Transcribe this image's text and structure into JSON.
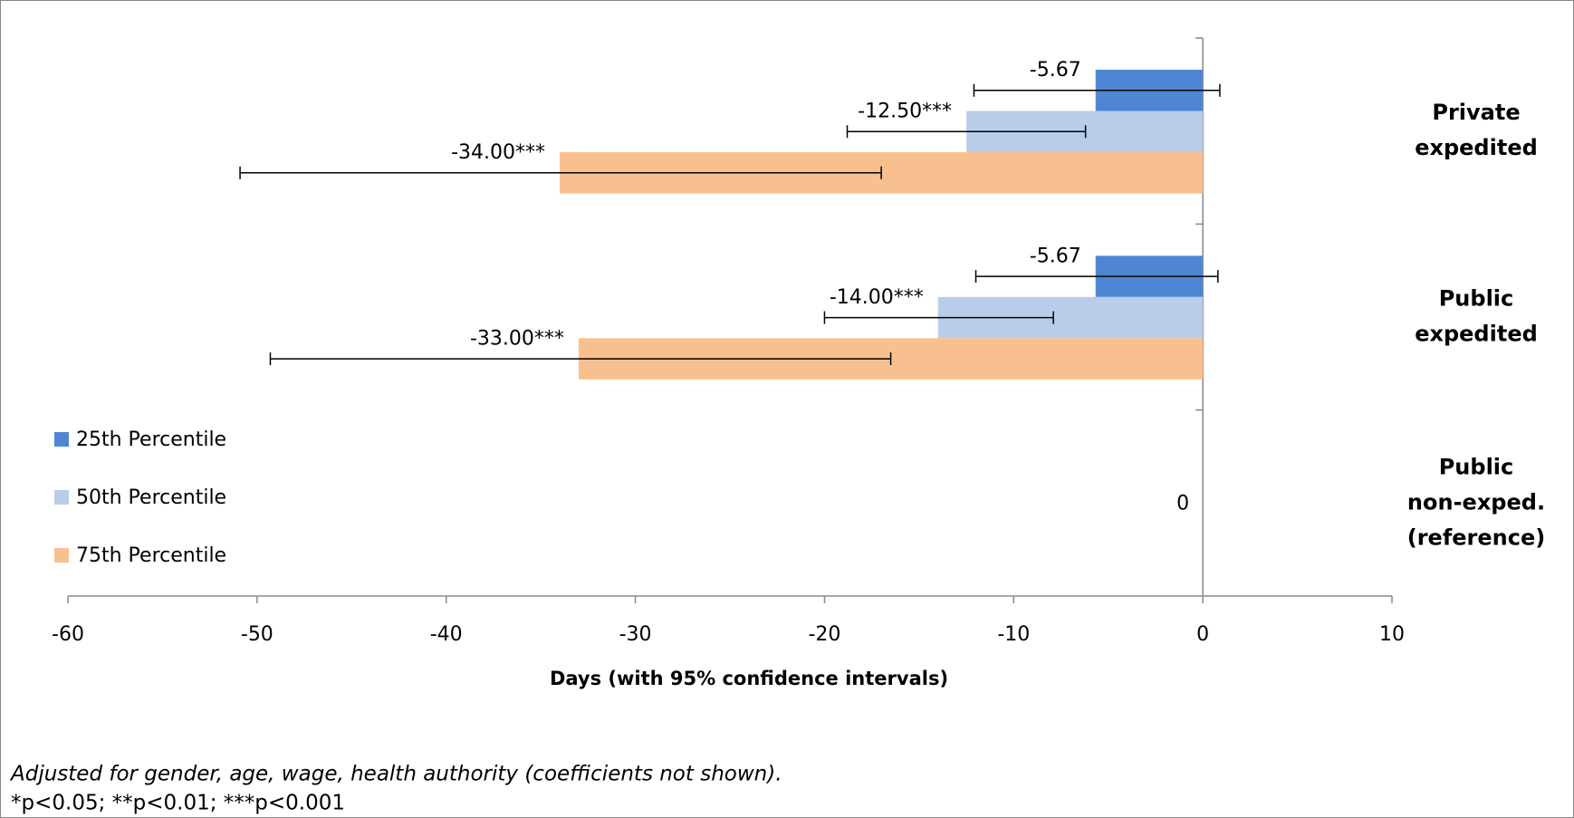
{
  "chart_data": {
    "type": "barh",
    "categories": [
      [
        "Private",
        "expedited"
      ],
      [
        "Public",
        "expedited"
      ],
      [
        "Public",
        "non-exped.",
        "(reference)"
      ]
    ],
    "series": [
      {
        "name": "25th Percentile",
        "color": "#4f86d4",
        "values": [
          -5.67,
          -5.67,
          null
        ],
        "value_labels": [
          "-5.67",
          "-5.67",
          null
        ],
        "ci": [
          [
            -12.1,
            0.9
          ],
          [
            -12.0,
            0.8
          ],
          null
        ]
      },
      {
        "name": "50th Percentile",
        "color": "#b9cde8",
        "values": [
          -12.5,
          -14,
          0
        ],
        "value_labels": [
          "-12.50***",
          "-14.00***",
          "0"
        ],
        "ci": [
          [
            -18.8,
            -6.2
          ],
          [
            -20.0,
            -7.9
          ],
          null
        ]
      },
      {
        "name": "75th Percentile",
        "color": "#f9c08f",
        "values": [
          -34,
          -33,
          null
        ],
        "value_labels": [
          "-34.00***",
          "-33.00***",
          null
        ],
        "ci": [
          [
            -50.9,
            -17.0
          ],
          [
            -49.3,
            -16.5
          ],
          null
        ]
      }
    ],
    "xlabel": "Days (with 95% confidence intervals)",
    "xlim": [
      -60,
      10
    ],
    "xticks": [
      -60,
      -50,
      -40,
      -30,
      -20,
      -10,
      0,
      10
    ],
    "legend": "left",
    "notes": [
      "Adjusted for gender, age, wage, health authority (coefficients not shown).",
      "*p<0.05;  **p<0.01; ***p<0.001"
    ]
  }
}
